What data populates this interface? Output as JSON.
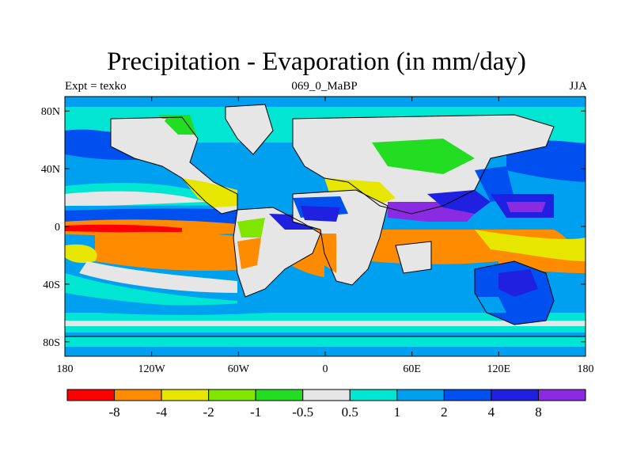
{
  "title": "Precipitation - Evaporation (in mm/day)",
  "subtitle_left": "Expt = texko",
  "subtitle_center": "069_0_MaBP",
  "subtitle_right": "JJA",
  "lat_ticks": [
    {
      "label": "80N",
      "lat": 80
    },
    {
      "label": "40N",
      "lat": 40
    },
    {
      "label": "0",
      "lat": 0
    },
    {
      "label": "40S",
      "lat": -40
    },
    {
      "label": "80S",
      "lat": -80
    }
  ],
  "lon_ticks": [
    {
      "label": "180",
      "lon": -180
    },
    {
      "label": "120W",
      "lon": -120
    },
    {
      "label": "60W",
      "lon": -60
    },
    {
      "label": "0",
      "lon": 0
    },
    {
      "label": "60E",
      "lon": 60
    },
    {
      "label": "120E",
      "lon": 120
    },
    {
      "label": "180",
      "lon": 180
    }
  ],
  "colorbar": {
    "colors": [
      "#ff0000",
      "#ff8c00",
      "#e6e600",
      "#80e600",
      "#22dd22",
      "#e6e6e6",
      "#00e6d2",
      "#00a0f0",
      "#0050f0",
      "#2020e0",
      "#8a2be2"
    ],
    "labels": [
      "-8",
      "-4",
      "-2",
      "-1",
      "-0.5",
      "0.5",
      "1",
      "2",
      "4",
      "8"
    ]
  }
}
